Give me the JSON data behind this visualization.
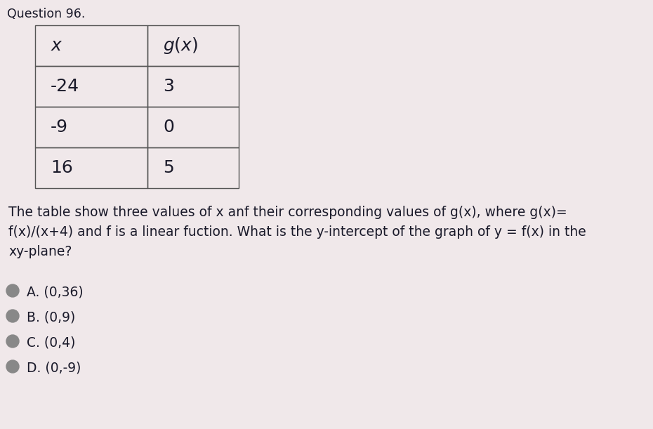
{
  "title": "Question 96.",
  "title_fontsize": 12.5,
  "bg_color": "#d8c8cc",
  "card_color": "#f0e8ea",
  "table_headers": [
    "x",
    "g(x)"
  ],
  "table_rows": [
    [
      "-24",
      "3"
    ],
    [
      "-9",
      "0"
    ],
    [
      "16",
      "5"
    ]
  ],
  "header_col1": "x",
  "header_col2": "g(x)",
  "description_line1": "The table show three values of x anf their corresponding values of g(x), where g(x)=",
  "description_line2": "f(x)/(x+4) and f is a linear fuction. What is the y-intercept of the graph of y = f(x) in the",
  "description_line3": "xy-plane?",
  "choices": [
    "A. (0,36)",
    "B. (0,9)",
    "C. (0,4)",
    "D. (0,-9)"
  ],
  "text_color": "#1a1a2a",
  "table_border_color": "#555555",
  "body_fontsize": 13.5,
  "choice_fontsize": 13.5,
  "radio_color": "#888888",
  "table_cell_fontsize": 18
}
